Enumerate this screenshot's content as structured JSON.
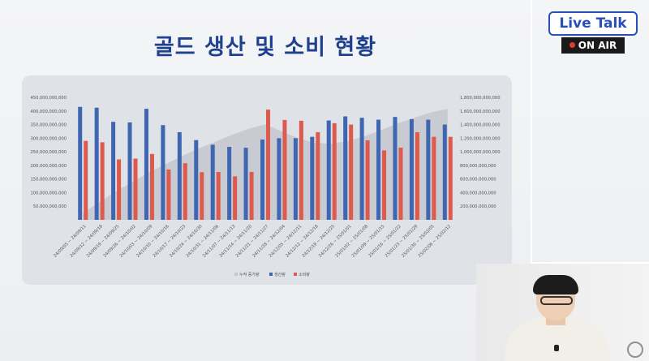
{
  "title": "골드 생산 및 소비 현황",
  "badge": {
    "top": "Live Talk",
    "bottom": "ON AIR"
  },
  "chart_data": {
    "type": "bar",
    "categories": [
      "24/09/05 ~ 24/09/11",
      "24/09/12 ~ 24/09/18",
      "24/09/19 ~ 24/09/25",
      "24/09/26 ~ 24/10/02",
      "24/10/03 ~ 24/10/09",
      "24/10/10 ~ 24/10/16",
      "24/10/17 ~ 24/10/23",
      "24/10/24 ~ 24/10/30",
      "24/10/31 ~ 24/11/06",
      "24/11/07 ~ 24/11/13",
      "24/11/14 ~ 24/11/20",
      "24/11/21 ~ 24/11/27",
      "24/11/28 ~ 24/12/04",
      "24/12/05 ~ 24/12/11",
      "24/12/12 ~ 24/12/18",
      "24/12/19 ~ 24/12/25",
      "24/12/26 ~ 25/01/01",
      "25/01/02 ~ 25/01/08",
      "25/01/09 ~ 25/01/15",
      "25/01/16 ~ 25/01/22",
      "25/01/23 ~ 25/01/29",
      "25/01/30 ~ 25/02/05",
      "25/02/06 ~ 25/02/12"
    ],
    "series": [
      {
        "name": "누적 증가량",
        "type": "area",
        "axis": "right",
        "color": "#c4c7cc",
        "values": [
          100000000000,
          260000000000,
          420000000000,
          560000000000,
          700000000000,
          820000000000,
          940000000000,
          1050000000000,
          1150000000000,
          1250000000000,
          1340000000000,
          1400000000000,
          1300000000000,
          1200000000000,
          1130000000000,
          1120000000000,
          1160000000000,
          1230000000000,
          1320000000000,
          1420000000000,
          1500000000000,
          1580000000000,
          1630000000000
        ]
      },
      {
        "name": "생산량",
        "type": "bar",
        "axis": "left",
        "color": "#3f66b2",
        "values": [
          415000000000,
          412000000000,
          360000000000,
          358000000000,
          408000000000,
          348000000000,
          322000000000,
          293000000000,
          276000000000,
          268000000000,
          265000000000,
          295000000000,
          300000000000,
          300000000000,
          305000000000,
          365000000000,
          380000000000,
          375000000000,
          368000000000,
          378000000000,
          370000000000,
          368000000000,
          350000000000
        ]
      },
      {
        "name": "소비량",
        "type": "bar",
        "axis": "left",
        "color": "#de5a4c",
        "values": [
          290000000000,
          285000000000,
          222000000000,
          225000000000,
          242000000000,
          185000000000,
          208000000000,
          175000000000,
          176000000000,
          160000000000,
          176000000000,
          405000000000,
          367000000000,
          364000000000,
          322000000000,
          355000000000,
          350000000000,
          292000000000,
          255000000000,
          265000000000,
          322000000000,
          305000000000,
          305000000000
        ]
      }
    ],
    "y_left": {
      "ylim": [
        0,
        450000000000
      ],
      "ticks": [
        "50,000,000,000",
        "100,000,000,000",
        "150,000,000,000",
        "200,000,000,000",
        "250,000,000,000",
        "300,000,000,000",
        "350,000,000,000",
        "400,000,000,000",
        "450,000,000,000"
      ],
      "tick_values": [
        50000000000,
        100000000000,
        150000000000,
        200000000000,
        250000000000,
        300000000000,
        350000000000,
        400000000000,
        450000000000
      ]
    },
    "y_right": {
      "ylim": [
        0,
        1800000000000
      ],
      "ticks": [
        "200,000,000,000",
        "400,000,000,000",
        "600,000,000,000",
        "800,000,000,000",
        "1,000,000,000,000",
        "1,200,000,000,000",
        "1,400,000,000,000",
        "1,600,000,000,000",
        "1,800,000,000,000"
      ],
      "tick_values": [
        200000000000,
        400000000000,
        600000000000,
        800000000000,
        1000000000000,
        1200000000000,
        1400000000000,
        1600000000000,
        1800000000000
      ]
    },
    "legend": {
      "placement": "bottom",
      "entries": [
        "누적 증가량",
        "생산량",
        "소비량"
      ]
    },
    "grid": false
  }
}
